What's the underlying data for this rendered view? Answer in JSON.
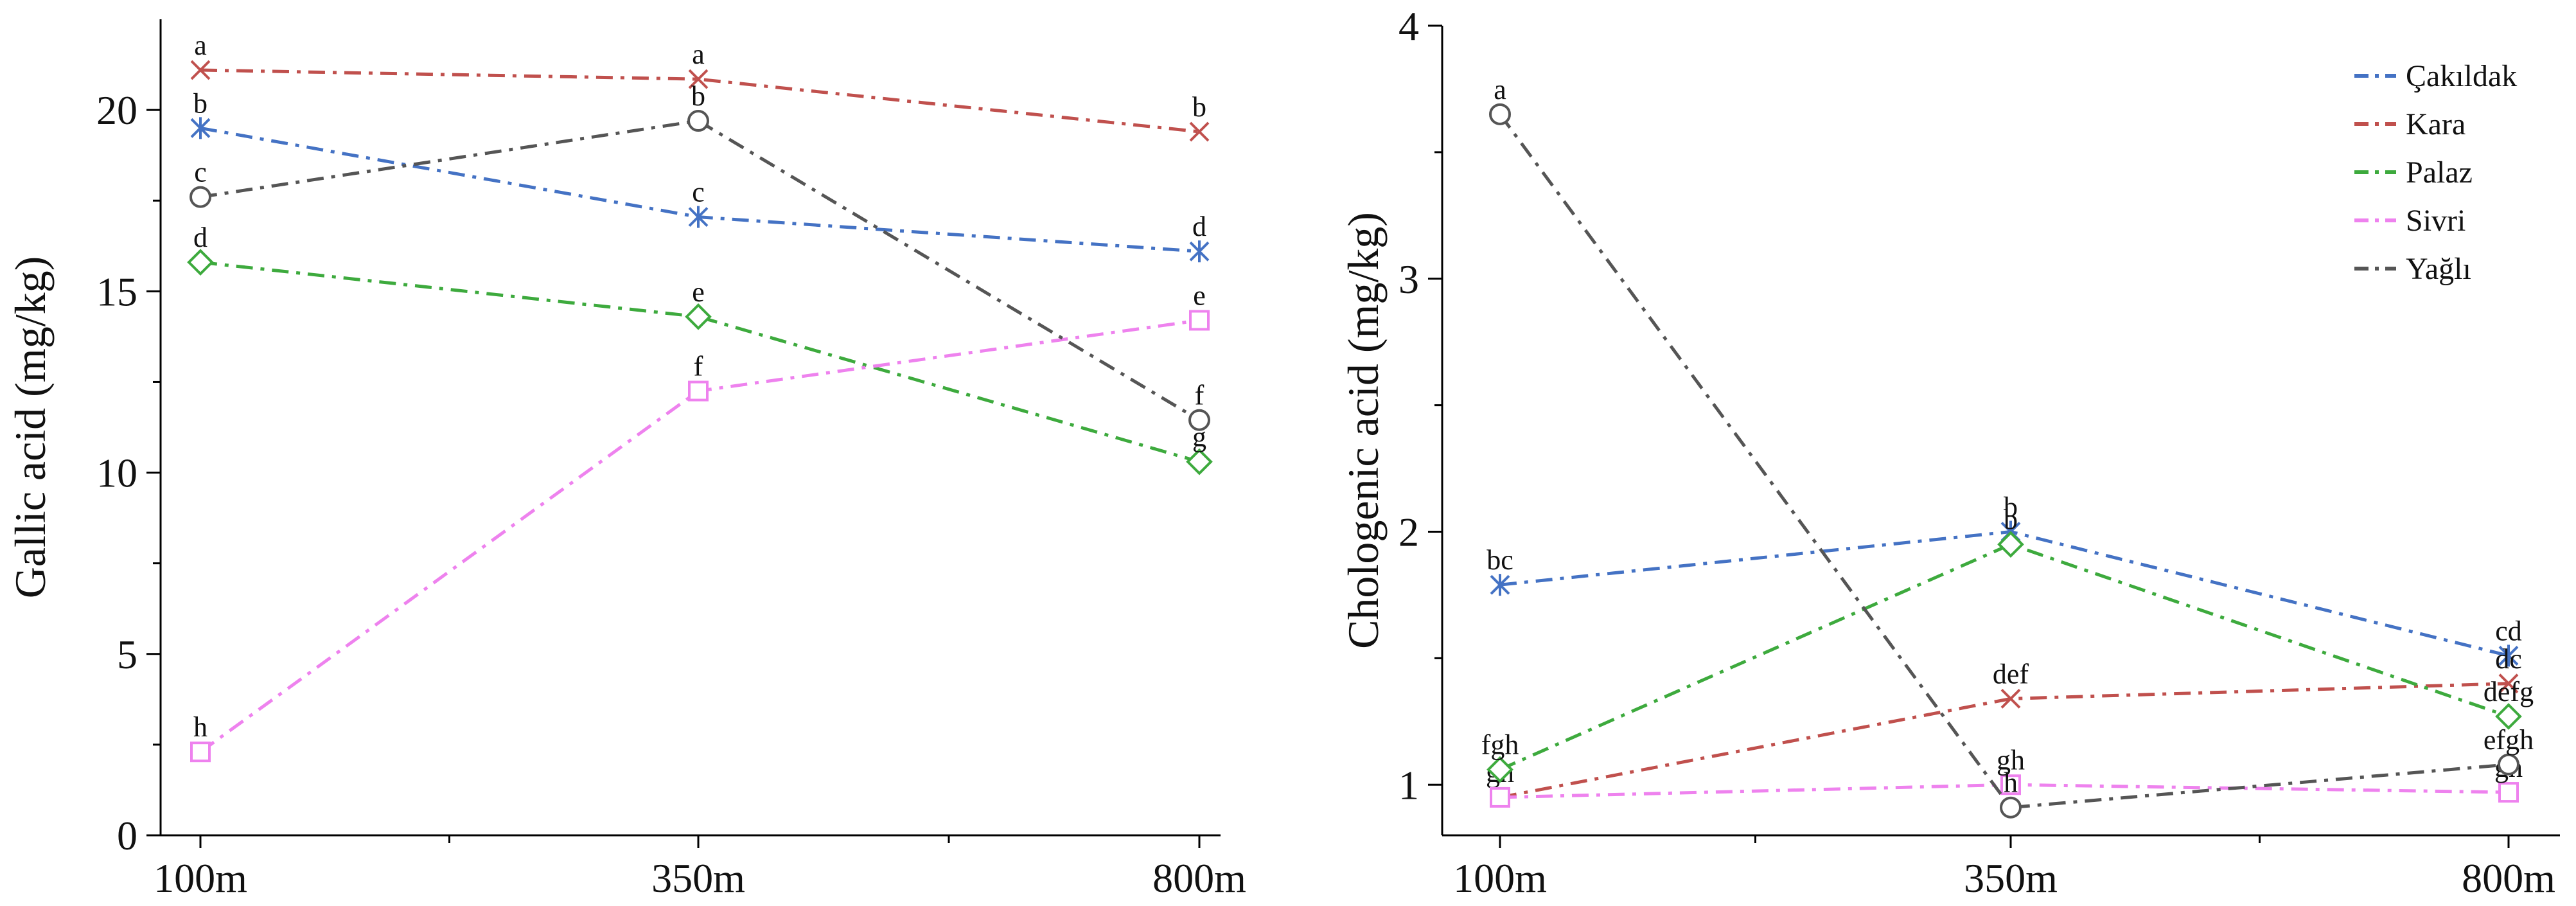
{
  "chart_data": [
    {
      "type": "line",
      "title": "",
      "xlabel": "",
      "ylabel": "Gallic acid (mg/kg)",
      "categories": [
        "100m",
        "350m",
        "800m"
      ],
      "ylim": [
        0,
        22.5
      ],
      "yticks": [
        0,
        5,
        10,
        15,
        20
      ],
      "ytick_labels": [
        "0",
        "5",
        "10",
        "15",
        "20"
      ],
      "series": [
        {
          "name": "Çakıldak",
          "color": "#4472C4",
          "marker": "star",
          "values": [
            19.5,
            17.05,
            16.1
          ],
          "letters": [
            "b",
            "c",
            "d"
          ]
        },
        {
          "name": "Kara",
          "color": "#C0504D",
          "marker": "x",
          "values": [
            21.1,
            20.85,
            19.4
          ],
          "letters": [
            "a",
            "a",
            "b"
          ]
        },
        {
          "name": "Palaz",
          "color": "#3DAA3D",
          "marker": "diamond",
          "values": [
            15.8,
            14.3,
            10.3
          ],
          "letters": [
            "d",
            "e",
            "g"
          ]
        },
        {
          "name": "Sivri",
          "color": "#EE82EE",
          "marker": "square",
          "values": [
            2.3,
            12.25,
            14.2
          ],
          "letters": [
            "h",
            "f",
            "e"
          ]
        },
        {
          "name": "Yağlı",
          "color": "#555555",
          "marker": "circle",
          "values": [
            17.6,
            19.7,
            11.45
          ],
          "letters": [
            "c",
            "b",
            "f"
          ]
        }
      ]
    },
    {
      "type": "line",
      "title": "",
      "xlabel": "",
      "ylabel": "Chologenic acid (mg/kg)",
      "categories": [
        "100m",
        "350m",
        "800m"
      ],
      "ylim": [
        0.8,
        4.0
      ],
      "yticks": [
        1,
        2,
        3,
        4
      ],
      "ytick_labels": [
        "1",
        "2",
        "3",
        "4"
      ],
      "legend_position": "top-right",
      "series": [
        {
          "name": "Çakıldak",
          "color": "#4472C4",
          "marker": "star",
          "values": [
            1.79,
            2.0,
            1.51
          ],
          "letters": [
            "bc",
            "b",
            "cd"
          ]
        },
        {
          "name": "Kara",
          "color": "#C0504D",
          "marker": "x",
          "values": [
            0.95,
            1.34,
            1.4
          ],
          "letters": [
            "gh",
            "def",
            "dc"
          ]
        },
        {
          "name": "Palaz",
          "color": "#3DAA3D",
          "marker": "diamond",
          "values": [
            1.06,
            1.95,
            1.27
          ],
          "letters": [
            "fgh",
            "b",
            "defg"
          ]
        },
        {
          "name": "Sivri",
          "color": "#EE82EE",
          "marker": "square",
          "values": [
            0.95,
            1.0,
            0.97
          ],
          "letters": [
            "",
            "gh",
            "gh"
          ]
        },
        {
          "name": "Yağlı",
          "color": "#555555",
          "marker": "circle",
          "values": [
            3.65,
            0.91,
            1.08
          ],
          "letters": [
            "a",
            "h",
            "efgh"
          ]
        }
      ]
    }
  ]
}
